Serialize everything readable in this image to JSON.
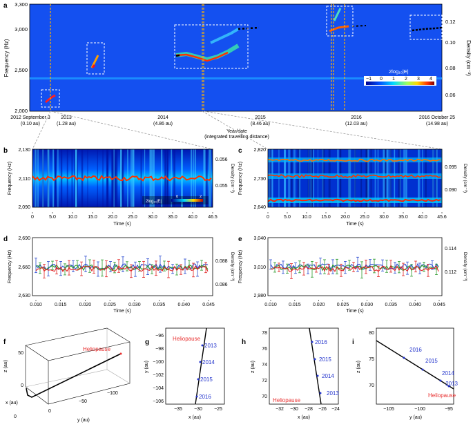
{
  "figure": {
    "panel_a": {
      "label": "a",
      "ylabel": "Frequency (Hz)",
      "yticks": [
        "3,300",
        "3,000",
        "2,500",
        "2,000"
      ],
      "y2label": "Density (cm⁻³)",
      "y2ticks": [
        "0.12",
        "0.10",
        "0.08",
        "0.06"
      ],
      "xticks": [
        {
          "label": "2012 September 3",
          "sub": "(0.10 au)"
        },
        {
          "label": "2013",
          "sub": "(1.28 au)"
        },
        {
          "label": "2014",
          "sub": "(4.86 au)"
        },
        {
          "label": "2015",
          "sub": "(8.46 au)"
        },
        {
          "label": "2016",
          "sub": "(12.03 au)"
        },
        {
          "label": "2016 October 25",
          "sub": "(14.98 au)"
        }
      ],
      "xlabel": "Year/date",
      "xlabel2": "(integrated travelling distance)",
      "colorbar": {
        "title": "2log₁₀|E|",
        "ticks": [
          "−1",
          "0",
          "1",
          "2",
          "3",
          "4"
        ]
      }
    },
    "panel_b": {
      "label": "b",
      "ylabel": "Frequency (Hz)",
      "yticks": [
        "2,130",
        "2,110",
        "2,090"
      ],
      "y2label": "Density (cm⁻³)",
      "y2ticks": [
        "0.056",
        "0.055"
      ],
      "xticks": [
        "0",
        "5.0",
        "10.0",
        "15.0",
        "20.0",
        "25.0",
        "30.0",
        "35.0",
        "40.0",
        "46.5"
      ],
      "xlabel": "Time (s)",
      "colorbar": {
        "title": "2log₁₀|E|",
        "ticks": [
          "0",
          "2"
        ]
      }
    },
    "panel_c": {
      "label": "c",
      "ylabel": "Frequency (Hz)",
      "yticks": [
        "2,820",
        "2,730",
        "2,640"
      ],
      "y2label": "Density (cm⁻³)",
      "y2ticks": [
        "0.095",
        "0.090"
      ],
      "xticks": [
        "0",
        "5.0",
        "10.0",
        "15.0",
        "20.0",
        "25.0",
        "30.0",
        "35.0",
        "40.0",
        "45.6"
      ],
      "xlabel": "Time (s)"
    },
    "panel_d": {
      "label": "d",
      "ylabel": "Frequency (Hz)",
      "yticks": [
        "2,690",
        "2,660",
        "2,630"
      ],
      "y2label": "Density (cm⁻³)",
      "y2ticks": [
        "0.088",
        "0.086"
      ],
      "xticks": [
        "0.010",
        "0.015",
        "0.020",
        "0.025",
        "0.030",
        "0.035",
        "0.040",
        "0.045"
      ],
      "xlabel": "Time (s)"
    },
    "panel_e": {
      "label": "e",
      "ylabel": "Frequency (Hz)",
      "yticks": [
        "3,040",
        "3,010",
        "2,980"
      ],
      "y2label": "Density (cm⁻³)",
      "y2ticks": [
        "0.114",
        "0.112"
      ],
      "xticks": [
        "0.010",
        "0.015",
        "0.020",
        "0.025",
        "0.030",
        "0.035",
        "0.040",
        "0.045"
      ],
      "xlabel": "Time (s)"
    },
    "panel_f": {
      "label": "f",
      "heliopause": "Heliopause",
      "zlabel": "z (au)",
      "zticks": [
        "50",
        "0"
      ],
      "xlabel": "x (au)",
      "xticks": [
        "0"
      ],
      "ylabel": "y (au)",
      "yticks": [
        "0",
        "−50",
        "−100"
      ]
    },
    "panel_g": {
      "label": "g",
      "heliopause": "Heliopause",
      "ylabel": "y (au)",
      "yticks": [
        "−96",
        "−98",
        "−100",
        "−102",
        "−104",
        "−106"
      ],
      "xlabel": "x (au)",
      "xticks": [
        "−35",
        "−30",
        "−25"
      ],
      "years": [
        "2013",
        "2014",
        "2015",
        "2016"
      ]
    },
    "panel_h": {
      "label": "h",
      "heliopause": "Heliopause",
      "ylabel": "z (au)",
      "yticks": [
        "78",
        "76",
        "74",
        "72",
        "70"
      ],
      "xlabel": "x (au)",
      "xticks": [
        "−32",
        "−30",
        "−28",
        "−26",
        "−24"
      ],
      "years": [
        "2016",
        "2015",
        "2014",
        "2013"
      ]
    },
    "panel_i": {
      "label": "i",
      "heliopause": "Heliopause",
      "ylabel": "z (au)",
      "yticks": [
        "80",
        "75",
        "70"
      ],
      "xlabel": "y (au)",
      "xticks": [
        "−105",
        "−100",
        "−95"
      ],
      "years": [
        "2016",
        "2015",
        "2014",
        "2013"
      ]
    }
  }
}
